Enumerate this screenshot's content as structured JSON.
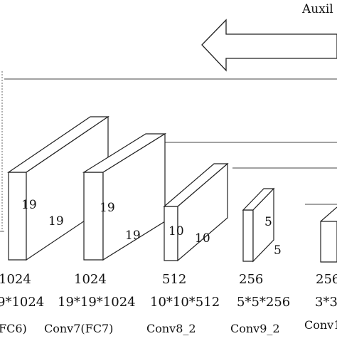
{
  "header": {
    "auxiliary_text": "Auxil"
  },
  "blocks": [
    {
      "channels": "1024",
      "shape": "9*1024",
      "name": "FC6)",
      "size_a": "19",
      "size_b": "19"
    },
    {
      "channels": "1024",
      "shape": "19*19*1024",
      "name": "Conv7(FC7)",
      "size_a": "19",
      "size_b": "19"
    },
    {
      "channels": "512",
      "shape": "10*10*512",
      "name": "Conv8_2",
      "size_a": "10",
      "size_b": "10"
    },
    {
      "channels": "256",
      "shape": "5*5*256",
      "name": "Conv9_2",
      "size_a": "5",
      "size_b": "5"
    },
    {
      "channels": "256",
      "shape": "3*3",
      "name": "Conv1"
    }
  ],
  "colors": {
    "stroke": "#222222",
    "guide": "#444444",
    "background": "#ffffff"
  }
}
